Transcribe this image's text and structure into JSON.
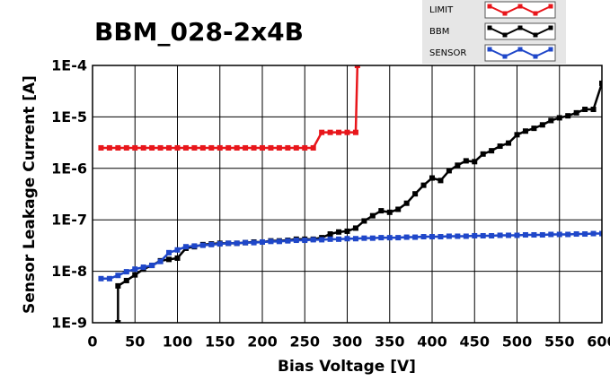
{
  "chart_data": {
    "type": "line",
    "title": "BBM_028-2x4B",
    "x_label": "Bias Voltage [V]",
    "y_label": "Sensor Leakage Current [A]",
    "log_y": true,
    "grid": true,
    "xlim": [
      0,
      600
    ],
    "xticks": [
      0,
      50,
      100,
      150,
      200,
      250,
      300,
      350,
      400,
      450,
      500,
      550,
      600
    ],
    "ylim": [
      1e-09,
      0.0001
    ],
    "yticks": [
      {
        "value": 1e-09,
        "label": "1E-9"
      },
      {
        "value": 1e-08,
        "label": "1E-8"
      },
      {
        "value": 1e-07,
        "label": "1E-7"
      },
      {
        "value": 1e-06,
        "label": "1E-6"
      },
      {
        "value": 1e-05,
        "label": "1E-5"
      },
      {
        "value": 0.0001,
        "label": "1E-4"
      }
    ],
    "series": [
      {
        "name": "LIMIT",
        "color": "#e8161b",
        "x": [
          10,
          20,
          30,
          40,
          50,
          60,
          70,
          80,
          90,
          100,
          110,
          120,
          130,
          140,
          150,
          160,
          170,
          180,
          190,
          200,
          210,
          220,
          230,
          240,
          250,
          260,
          270,
          280,
          290,
          300,
          310,
          312
        ],
        "values": [
          2.5e-06,
          2.5e-06,
          2.5e-06,
          2.5e-06,
          2.5e-06,
          2.5e-06,
          2.5e-06,
          2.5e-06,
          2.5e-06,
          2.5e-06,
          2.5e-06,
          2.5e-06,
          2.5e-06,
          2.5e-06,
          2.5e-06,
          2.5e-06,
          2.5e-06,
          2.5e-06,
          2.5e-06,
          2.5e-06,
          2.5e-06,
          2.5e-06,
          2.5e-06,
          2.5e-06,
          2.5e-06,
          2.5e-06,
          5e-06,
          5e-06,
          5e-06,
          5e-06,
          5e-06,
          0.0001
        ]
      },
      {
        "name": "BBM",
        "color": "#000000",
        "x": [
          30,
          30,
          40,
          50,
          60,
          70,
          80,
          90,
          100,
          110,
          120,
          130,
          140,
          150,
          160,
          170,
          180,
          190,
          200,
          210,
          220,
          230,
          240,
          250,
          260,
          270,
          280,
          290,
          300,
          310,
          320,
          330,
          340,
          350,
          360,
          370,
          380,
          390,
          400,
          410,
          420,
          430,
          440,
          450,
          460,
          470,
          480,
          490,
          500,
          510,
          520,
          530,
          540,
          550,
          560,
          570,
          580,
          590,
          600
        ],
        "values": [
          1e-09,
          5.2e-09,
          6.6e-09,
          8.5e-09,
          1.1e-08,
          1.3e-08,
          1.6e-08,
          1.7e-08,
          1.8e-08,
          2.8e-08,
          3e-08,
          3.3e-08,
          3.4e-08,
          3.5e-08,
          3.5e-08,
          3.5e-08,
          3.6e-08,
          3.7e-08,
          3.7e-08,
          3.9e-08,
          3.9e-08,
          4e-08,
          4.2e-08,
          4.2e-08,
          4.2e-08,
          4.5e-08,
          5.3e-08,
          5.8e-08,
          6e-08,
          6.9e-08,
          9.5e-08,
          1.2e-07,
          1.5e-07,
          1.4e-07,
          1.6e-07,
          2.1e-07,
          3.2e-07,
          4.7e-07,
          6.5e-07,
          5.8e-07,
          9e-07,
          1.15e-06,
          1.4e-06,
          1.35e-06,
          1.9e-06,
          2.2e-06,
          2.7e-06,
          3.1e-06,
          4.5e-06,
          5.3e-06,
          6e-06,
          7e-06,
          8.5e-06,
          9.6e-06,
          1.05e-05,
          1.2e-05,
          1.4e-05,
          1.4e-05,
          4.5e-05
        ]
      },
      {
        "name": "SENSOR",
        "color": "#1f47c9",
        "x": [
          10,
          20,
          30,
          40,
          50,
          60,
          70,
          80,
          90,
          100,
          110,
          120,
          130,
          140,
          150,
          160,
          170,
          180,
          190,
          200,
          210,
          220,
          230,
          240,
          250,
          260,
          270,
          280,
          290,
          300,
          310,
          320,
          330,
          340,
          350,
          360,
          370,
          380,
          390,
          400,
          410,
          420,
          430,
          440,
          450,
          460,
          470,
          480,
          490,
          500,
          510,
          520,
          530,
          540,
          550,
          560,
          570,
          580,
          590,
          600
        ],
        "values": [
          7.2e-09,
          7.2e-09,
          8.3e-09,
          9.8e-09,
          1.1e-08,
          1.2e-08,
          1.3e-08,
          1.55e-08,
          2.3e-08,
          2.6e-08,
          3e-08,
          3.1e-08,
          3.2e-08,
          3.3e-08,
          3.4e-08,
          3.5e-08,
          3.5e-08,
          3.6e-08,
          3.6e-08,
          3.7e-08,
          3.8e-08,
          3.8e-08,
          3.9e-08,
          4e-08,
          4e-08,
          4.1e-08,
          4.1e-08,
          4.2e-08,
          4.2e-08,
          4.3e-08,
          4.3e-08,
          4.4e-08,
          4.4e-08,
          4.5e-08,
          4.5e-08,
          4.5e-08,
          4.6e-08,
          4.6e-08,
          4.7e-08,
          4.7e-08,
          4.7e-08,
          4.8e-08,
          4.8e-08,
          4.8e-08,
          4.9e-08,
          4.9e-08,
          4.9e-08,
          5e-08,
          5e-08,
          5e-08,
          5.1e-08,
          5.1e-08,
          5.1e-08,
          5.2e-08,
          5.2e-08,
          5.2e-08,
          5.3e-08,
          5.3e-08,
          5.4e-08,
          5.4e-08
        ]
      }
    ]
  }
}
